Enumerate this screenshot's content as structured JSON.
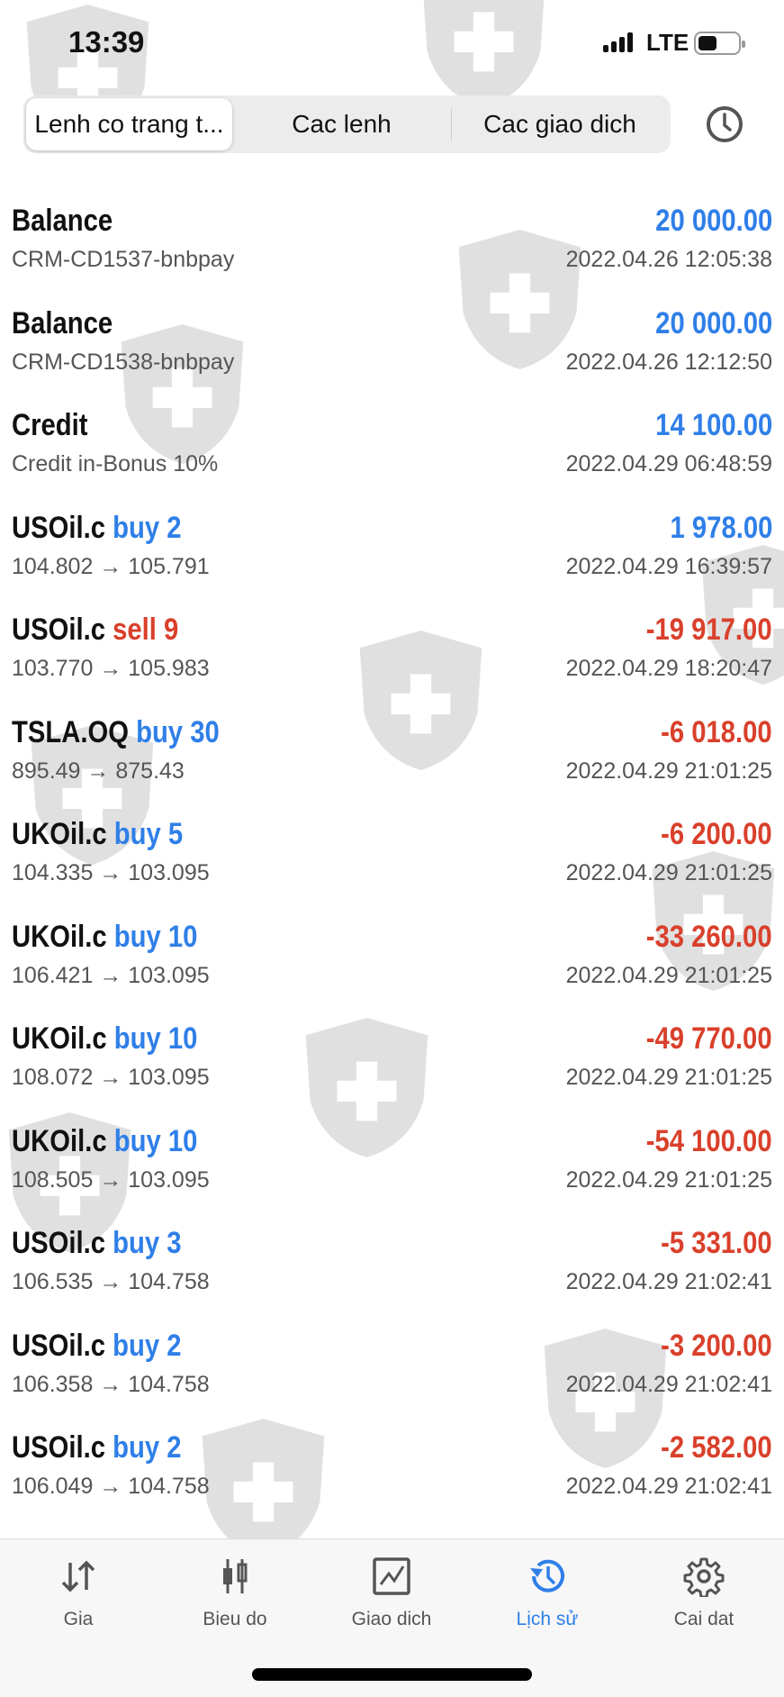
{
  "status_bar": {
    "time": "13:39",
    "network": "LTE"
  },
  "segments": {
    "items": [
      "Lenh co trang t...",
      "Cac lenh",
      "Cac giao dich"
    ],
    "active": 0
  },
  "colors": {
    "accent": "#2f7fe8",
    "negative": "#d9402b"
  },
  "rows": [
    {
      "symbol": "Balance",
      "action": "",
      "action_type": "",
      "subtitle": "CRM-CD1537-bnbpay",
      "amount": "20 000.00",
      "sign": "pos",
      "datetime": "2022.04.26 12:05:38"
    },
    {
      "symbol": "Balance",
      "action": "",
      "action_type": "",
      "subtitle": "CRM-CD1538-bnbpay",
      "amount": "20 000.00",
      "sign": "pos",
      "datetime": "2022.04.26 12:12:50"
    },
    {
      "symbol": "Credit",
      "action": "",
      "action_type": "",
      "subtitle": "Credit in-Bonus 10%",
      "amount": "14 100.00",
      "sign": "pos",
      "datetime": "2022.04.29 06:48:59"
    },
    {
      "symbol": "USOil.c",
      "action": "buy 2",
      "action_type": "buy",
      "subtitle": "104.802 → 105.791",
      "amount": "1 978.00",
      "sign": "pos",
      "datetime": "2022.04.29 16:39:57"
    },
    {
      "symbol": "USOil.c",
      "action": "sell 9",
      "action_type": "sell",
      "subtitle": "103.770 → 105.983",
      "amount": "-19 917.00",
      "sign": "neg",
      "datetime": "2022.04.29 18:20:47"
    },
    {
      "symbol": "TSLA.OQ",
      "action": "buy 30",
      "action_type": "buy",
      "subtitle": "895.49 → 875.43",
      "amount": "-6 018.00",
      "sign": "neg",
      "datetime": "2022.04.29 21:01:25"
    },
    {
      "symbol": "UKOil.c",
      "action": "buy 5",
      "action_type": "buy",
      "subtitle": "104.335 → 103.095",
      "amount": "-6 200.00",
      "sign": "neg",
      "datetime": "2022.04.29 21:01:25"
    },
    {
      "symbol": "UKOil.c",
      "action": "buy 10",
      "action_type": "buy",
      "subtitle": "106.421 → 103.095",
      "amount": "-33 260.00",
      "sign": "neg",
      "datetime": "2022.04.29 21:01:25"
    },
    {
      "symbol": "UKOil.c",
      "action": "buy 10",
      "action_type": "buy",
      "subtitle": "108.072 → 103.095",
      "amount": "-49 770.00",
      "sign": "neg",
      "datetime": "2022.04.29 21:01:25"
    },
    {
      "symbol": "UKOil.c",
      "action": "buy 10",
      "action_type": "buy",
      "subtitle": "108.505 → 103.095",
      "amount": "-54 100.00",
      "sign": "neg",
      "datetime": "2022.04.29 21:01:25"
    },
    {
      "symbol": "USOil.c",
      "action": "buy 3",
      "action_type": "buy",
      "subtitle": "106.535 → 104.758",
      "amount": "-5 331.00",
      "sign": "neg",
      "datetime": "2022.04.29 21:02:41"
    },
    {
      "symbol": "USOil.c",
      "action": "buy 2",
      "action_type": "buy",
      "subtitle": "106.358 → 104.758",
      "amount": "-3 200.00",
      "sign": "neg",
      "datetime": "2022.04.29 21:02:41"
    },
    {
      "symbol": "USOil.c",
      "action": "buy 2",
      "action_type": "buy",
      "subtitle": "106.049 → 104.758",
      "amount": "-2 582.00",
      "sign": "neg",
      "datetime": "2022.04.29 21:02:41"
    }
  ],
  "nav": {
    "items": [
      {
        "label": "Gia",
        "icon": "arrows-up-down-icon"
      },
      {
        "label": "Bieu do",
        "icon": "candlestick-icon"
      },
      {
        "label": "Giao dich",
        "icon": "trade-chart-icon"
      },
      {
        "label": "Lịch sử",
        "icon": "history-icon"
      },
      {
        "label": "Cai dat",
        "icon": "gear-icon"
      }
    ],
    "active": 3
  }
}
